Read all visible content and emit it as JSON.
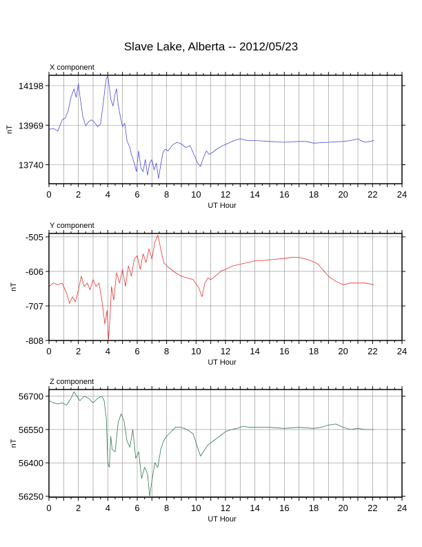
{
  "title": "Slave Lake, Alberta -- 2012/05/23",
  "chart_data": [
    {
      "type": "line",
      "title": "X component",
      "xlabel": "UT Hour",
      "ylabel": "nT",
      "xlim": [
        0,
        24
      ],
      "ylim": [
        13630,
        14258
      ],
      "xticks": [
        0,
        2,
        4,
        6,
        8,
        10,
        12,
        14,
        16,
        18,
        20,
        22,
        24
      ],
      "yticks": [
        13740,
        13969,
        14198
      ],
      "grid": true,
      "color": "#4a4adf",
      "series": [
        {
          "x": [
            0,
            0.3,
            0.6,
            0.9,
            1.1,
            1.3,
            1.5,
            1.7,
            1.85,
            2.0,
            2.1,
            2.3,
            2.5,
            2.7,
            2.9,
            3.1,
            3.3,
            3.5,
            3.7,
            3.8,
            3.9,
            4.0,
            4.1,
            4.2,
            4.35,
            4.5,
            4.6,
            4.7,
            4.85,
            5.0,
            5.15,
            5.3,
            5.5,
            5.6,
            5.8,
            5.95,
            6.1,
            6.25,
            6.4,
            6.55,
            6.7,
            6.85,
            7.0,
            7.15,
            7.3,
            7.45,
            7.6,
            7.75,
            7.9,
            8.1,
            8.4,
            8.7,
            9.0,
            9.3,
            9.6,
            9.9,
            10.1,
            10.3,
            10.5,
            10.7,
            10.9,
            11.1,
            11.4,
            11.8,
            12.2,
            12.6,
            13.0,
            13.5,
            14.0,
            15.0,
            16.0,
            17.0,
            17.5,
            18.0,
            19.0,
            20.0,
            20.5,
            21.0,
            21.2,
            21.5,
            21.8,
            22.1
          ],
          "y": [
            13945,
            13950,
            13935,
            14000,
            14010,
            14050,
            14130,
            14180,
            14130,
            14210,
            14140,
            14020,
            13965,
            13990,
            14000,
            13985,
            13960,
            13975,
            14100,
            14180,
            14240,
            14255,
            14190,
            14120,
            14080,
            14150,
            14180,
            14090,
            14020,
            13960,
            13980,
            13880,
            13840,
            13800,
            13750,
            13700,
            13820,
            13720,
            13700,
            13770,
            13680,
            13750,
            13770,
            13710,
            13750,
            13660,
            13740,
            13810,
            13830,
            13820,
            13855,
            13870,
            13860,
            13840,
            13850,
            13790,
            13750,
            13730,
            13780,
            13820,
            13800,
            13810,
            13830,
            13850,
            13865,
            13880,
            13890,
            13880,
            13880,
            13875,
            13870,
            13875,
            13875,
            13865,
            13870,
            13875,
            13880,
            13890,
            13880,
            13870,
            13875,
            13880
          ]
        }
      ]
    },
    {
      "type": "line",
      "title": "Y component",
      "xlabel": "UT Hour",
      "ylabel": "nT",
      "xlim": [
        0,
        24
      ],
      "ylim": [
        -808,
        -495
      ],
      "xticks": [
        0,
        2,
        4,
        6,
        8,
        10,
        12,
        14,
        16,
        18,
        20,
        22,
        24
      ],
      "yticks": [
        -808,
        -707,
        -606,
        -505
      ],
      "grid": true,
      "color": "#e83030",
      "series": [
        {
          "x": [
            0,
            0.3,
            0.6,
            0.9,
            1.2,
            1.4,
            1.6,
            1.8,
            2.0,
            2.2,
            2.4,
            2.6,
            2.8,
            3.0,
            3.2,
            3.4,
            3.6,
            3.8,
            3.95,
            4.05,
            4.15,
            4.25,
            4.4,
            4.6,
            4.8,
            5.0,
            5.2,
            5.4,
            5.6,
            5.8,
            6.0,
            6.2,
            6.4,
            6.6,
            6.8,
            7.0,
            7.2,
            7.4,
            7.6,
            7.8,
            8.0,
            8.3,
            8.6,
            9.0,
            9.4,
            9.8,
            10.2,
            10.4,
            10.6,
            10.8,
            11.0,
            11.3,
            11.7,
            12.0,
            12.5,
            13.0,
            13.5,
            14.0,
            14.5,
            15.0,
            15.5,
            16.0,
            16.5,
            17.0,
            17.5,
            18.0,
            18.3,
            18.6,
            19.0,
            19.5,
            20.0,
            20.5,
            21.0,
            21.5,
            22.1
          ],
          "y": [
            -650,
            -640,
            -645,
            -640,
            -670,
            -700,
            -680,
            -695,
            -660,
            -620,
            -650,
            -640,
            -660,
            -630,
            -650,
            -640,
            -690,
            -760,
            -720,
            -805,
            -740,
            -650,
            -690,
            -610,
            -640,
            -600,
            -650,
            -590,
            -620,
            -570,
            -560,
            -600,
            -555,
            -580,
            -540,
            -570,
            -520,
            -500,
            -540,
            -580,
            -590,
            -600,
            -610,
            -620,
            -625,
            -630,
            -655,
            -680,
            -640,
            -625,
            -630,
            -620,
            -605,
            -600,
            -590,
            -585,
            -580,
            -575,
            -575,
            -572,
            -570,
            -568,
            -565,
            -565,
            -570,
            -578,
            -585,
            -600,
            -620,
            -635,
            -645,
            -640,
            -640,
            -640,
            -645
          ]
        }
      ]
    },
    {
      "type": "line",
      "title": "Z component",
      "xlabel": "UT Hour",
      "ylabel": "nT",
      "xlim": [
        0,
        24
      ],
      "ylim": [
        56245,
        56730
      ],
      "xticks": [
        0,
        2,
        4,
        6,
        8,
        10,
        12,
        14,
        16,
        18,
        20,
        22,
        24
      ],
      "yticks": [
        56250,
        56400,
        56550,
        56700
      ],
      "grid": true,
      "color": "#2f7a4a",
      "series": [
        {
          "x": [
            0,
            0.3,
            0.6,
            0.9,
            1.2,
            1.5,
            1.7,
            1.9,
            2.1,
            2.4,
            2.7,
            3.0,
            3.3,
            3.6,
            3.75,
            3.9,
            4.0,
            4.1,
            4.2,
            4.3,
            4.5,
            4.7,
            4.9,
            5.1,
            5.3,
            5.5,
            5.7,
            5.9,
            6.1,
            6.3,
            6.5,
            6.7,
            6.85,
            7.0,
            7.2,
            7.4,
            7.6,
            7.8,
            8.0,
            8.3,
            8.6,
            9.0,
            9.4,
            9.8,
            10.1,
            10.3,
            10.5,
            10.8,
            11.2,
            11.6,
            12.0,
            12.4,
            12.8,
            13.2,
            13.6,
            14.0,
            15.0,
            16.0,
            17.0,
            18.0,
            18.5,
            19.0,
            19.5,
            20.0,
            20.5,
            21.0,
            21.5,
            22.1
          ],
          "y": [
            56680,
            56670,
            56665,
            56670,
            56660,
            56690,
            56720,
            56700,
            56680,
            56700,
            56690,
            56670,
            56690,
            56700,
            56680,
            56600,
            56400,
            56380,
            56520,
            56460,
            56450,
            56580,
            56620,
            56590,
            56500,
            56470,
            56550,
            56420,
            56450,
            56330,
            56380,
            56350,
            56250,
            56320,
            56400,
            56380,
            56460,
            56500,
            56520,
            56540,
            56560,
            56560,
            56550,
            56530,
            56470,
            56430,
            56450,
            56480,
            56500,
            56520,
            56540,
            56550,
            56555,
            56565,
            56560,
            56560,
            56560,
            56555,
            56560,
            56555,
            56560,
            56570,
            56575,
            56560,
            56550,
            56555,
            56550,
            56550
          ]
        }
      ]
    }
  ]
}
